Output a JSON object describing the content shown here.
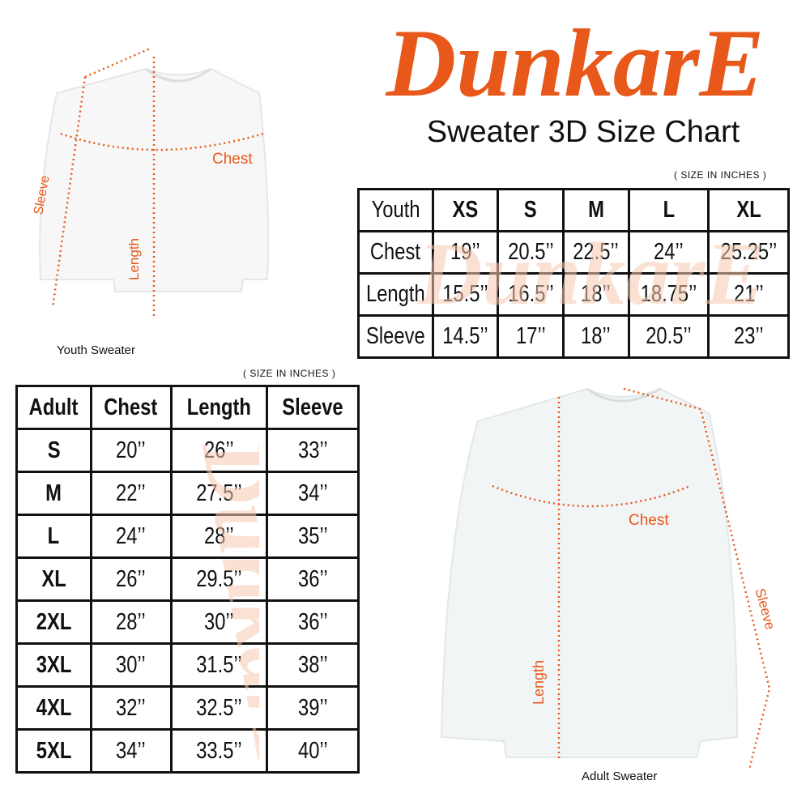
{
  "brand": {
    "logo_text": "DunkarE",
    "color": "#e8581a",
    "watermark_color": "#f6c9b0"
  },
  "title": "Sweater 3D Size Chart",
  "youth": {
    "units_note": "( SIZE IN INCHES )",
    "image_label": "Youth Sweater",
    "measure_labels": {
      "chest": "Chest",
      "length": "Length",
      "sleeve": "Sleeve"
    },
    "header": [
      "Youth",
      "XS",
      "S",
      "M",
      "L",
      "XL"
    ],
    "rows": [
      [
        "Chest",
        "19’’",
        "20.5’’",
        "22.5’’",
        "24’’",
        "25.25’’"
      ],
      [
        "Length",
        "15.5’’",
        "16.5’’",
        "18’’",
        "18.75’’",
        "21’’"
      ],
      [
        "Sleeve",
        "14.5’’",
        "17’’",
        "18’’",
        "20.5’’",
        "23’’"
      ]
    ]
  },
  "adult": {
    "units_note": "( SIZE IN INCHES )",
    "image_label": "Adult Sweater",
    "measure_labels": {
      "chest": "Chest",
      "length": "Length",
      "sleeve": "Sleeve"
    },
    "header": [
      "Adult",
      "Chest",
      "Length",
      "Sleeve"
    ],
    "rows": [
      [
        "S",
        "20’’",
        "26’’",
        "33’’"
      ],
      [
        "M",
        "22’’",
        "27.5’’",
        "34’’"
      ],
      [
        "L",
        "24’’",
        "28’’",
        "35’’"
      ],
      [
        "XL",
        "26’’",
        "29.5’’",
        "36’’"
      ],
      [
        "2XL",
        "28’’",
        "30’’",
        "36’’"
      ],
      [
        "3XL",
        "30’’",
        "31.5’’",
        "38’’"
      ],
      [
        "4XL",
        "32’’",
        "32.5’’",
        "39’’"
      ],
      [
        "5XL",
        "34’’",
        "33.5’’",
        "40’’"
      ]
    ]
  }
}
